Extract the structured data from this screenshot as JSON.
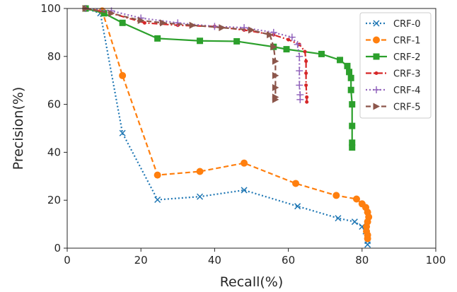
{
  "chart_data": {
    "type": "line",
    "title": "",
    "xlabel": "Recall(%)",
    "ylabel": "Precision(%)",
    "xlim": [
      0,
      100
    ],
    "ylim": [
      0,
      100
    ],
    "xticks": [
      "0",
      "20",
      "40",
      "60",
      "80",
      "100"
    ],
    "yticks": [
      "0",
      "20",
      "40",
      "60",
      "80",
      "100"
    ],
    "grid": false,
    "legend": "top-right",
    "series": [
      {
        "name": "CRF-0",
        "color": "#1f77b4",
        "linestyle": "dotted",
        "marker": "x",
        "points": [
          [
            5,
            100
          ],
          [
            9,
            98
          ],
          [
            15,
            48
          ],
          [
            24.5,
            20.2
          ],
          [
            36,
            21.5
          ],
          [
            48,
            24.2
          ],
          [
            62.5,
            17.5
          ],
          [
            73.5,
            12.5
          ],
          [
            78,
            11
          ],
          [
            80,
            9
          ],
          [
            81,
            7
          ],
          [
            81.5,
            3
          ],
          [
            81.5,
            1.5
          ]
        ]
      },
      {
        "name": "CRF-1",
        "color": "#ff7f0e",
        "linestyle": "dashed",
        "marker": "o",
        "points": [
          [
            5,
            100
          ],
          [
            9.5,
            99
          ],
          [
            15,
            72
          ],
          [
            24.5,
            30.5
          ],
          [
            36,
            32
          ],
          [
            48,
            35.5
          ],
          [
            62,
            27
          ],
          [
            73,
            22
          ],
          [
            78.5,
            20.5
          ],
          [
            80,
            18.5
          ],
          [
            81,
            17
          ],
          [
            81.5,
            15
          ],
          [
            81.8,
            13
          ],
          [
            81.5,
            11
          ],
          [
            81.2,
            9
          ],
          [
            81.2,
            7
          ],
          [
            81.5,
            5.5
          ],
          [
            81.5,
            4
          ]
        ]
      },
      {
        "name": "CRF-2",
        "color": "#2ca02c",
        "linestyle": "solid",
        "marker": "s",
        "points": [
          [
            5,
            100
          ],
          [
            10,
            98
          ],
          [
            15,
            94
          ],
          [
            24.5,
            87.5
          ],
          [
            36,
            86.5
          ],
          [
            46,
            86.3
          ],
          [
            56,
            84
          ],
          [
            59.5,
            83
          ],
          [
            69,
            81
          ],
          [
            74,
            78.5
          ],
          [
            76,
            76
          ],
          [
            76.5,
            73.5
          ],
          [
            77,
            71
          ],
          [
            77,
            66
          ],
          [
            77.3,
            60
          ],
          [
            77.3,
            51
          ],
          [
            77.3,
            44
          ],
          [
            77.3,
            42
          ]
        ]
      },
      {
        "name": "CRF-3",
        "color": "#d62728",
        "linestyle": "dashdot",
        "marker": ".",
        "points": [
          [
            5,
            100
          ],
          [
            12,
            98
          ],
          [
            21,
            94
          ],
          [
            30,
            93
          ],
          [
            40,
            92.5
          ],
          [
            48,
            91
          ],
          [
            56,
            89
          ],
          [
            60,
            87
          ],
          [
            63,
            85
          ],
          [
            64.5,
            82
          ],
          [
            64.8,
            78
          ],
          [
            64.8,
            73
          ],
          [
            64.8,
            68
          ],
          [
            65,
            63
          ],
          [
            65,
            61
          ]
        ]
      },
      {
        "name": "CRF-4",
        "color": "#9467bd",
        "linestyle": "dotted",
        "marker": "+",
        "points": [
          [
            5,
            100
          ],
          [
            12,
            99
          ],
          [
            20,
            96
          ],
          [
            30,
            94
          ],
          [
            40,
            92.5
          ],
          [
            48,
            92
          ],
          [
            56,
            90
          ],
          [
            61,
            88
          ],
          [
            62.5,
            85
          ],
          [
            63,
            80
          ],
          [
            63,
            74
          ],
          [
            63,
            68
          ],
          [
            63.2,
            64
          ],
          [
            63.2,
            62
          ]
        ]
      },
      {
        "name": "CRF-5",
        "color": "#8c564b",
        "linestyle": "dashed",
        "marker": ">",
        "points": [
          [
            5,
            100
          ],
          [
            12,
            98
          ],
          [
            20,
            95
          ],
          [
            26,
            94
          ],
          [
            34,
            93
          ],
          [
            42,
            92
          ],
          [
            50,
            91
          ],
          [
            55,
            89
          ],
          [
            56,
            84
          ],
          [
            56.5,
            78
          ],
          [
            56.5,
            72
          ],
          [
            56.5,
            67
          ],
          [
            56.5,
            63
          ],
          [
            56.5,
            62
          ]
        ]
      }
    ]
  }
}
